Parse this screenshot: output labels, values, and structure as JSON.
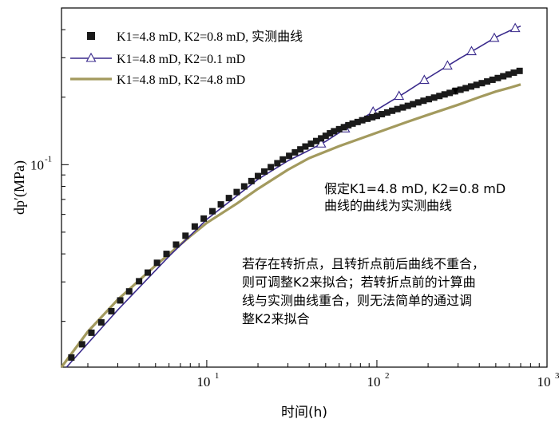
{
  "chart_data": {
    "type": "line",
    "xscale": "log",
    "yscale": "log",
    "xlim": [
      1.4,
      1000
    ],
    "ylim": [
      0.0125,
      0.5
    ],
    "xlabel": "时间(h)",
    "ylabel": "dp′(MPa)",
    "xticks": [
      {
        "value": 10,
        "base": "10",
        "exp": "1"
      },
      {
        "value": 100,
        "base": "10",
        "exp": "2"
      },
      {
        "value": 1000,
        "base": "10",
        "exp": "3"
      }
    ],
    "yticks": [
      {
        "value": 0.1,
        "base": "10",
        "exp": "-1"
      }
    ],
    "legend": {
      "placement": "top-left",
      "entries": [
        {
          "series": 0,
          "label": "K1=4.8 mD, K2=0.8 mD, 实测曲线"
        },
        {
          "series": 1,
          "label": "K1=4.8 mD, K2=0.1 mD"
        },
        {
          "series": 2,
          "label": "K1=4.8 mD, K2=4.8 mD"
        }
      ]
    },
    "series": [
      {
        "name": "K1=4.8 mD, K2=0.8 mD, 实测曲线",
        "style": "square-markers",
        "color": "#1a1a1a",
        "points": [
          [
            1.6,
            0.0138
          ],
          [
            1.85,
            0.0158
          ],
          [
            2.1,
            0.0178
          ],
          [
            2.4,
            0.0198
          ],
          [
            2.75,
            0.0222
          ],
          [
            3.1,
            0.0248
          ],
          [
            3.5,
            0.0272
          ],
          [
            4.0,
            0.0302
          ],
          [
            4.5,
            0.033
          ],
          [
            5.1,
            0.0365
          ],
          [
            5.8,
            0.04
          ],
          [
            6.6,
            0.044
          ],
          [
            7.5,
            0.0482
          ],
          [
            8.5,
            0.053
          ],
          [
            9.6,
            0.0575
          ],
          [
            10.8,
            0.062
          ],
          [
            12.1,
            0.0665
          ],
          [
            13.5,
            0.071
          ],
          [
            15.0,
            0.0755
          ],
          [
            16.6,
            0.08
          ],
          [
            18.3,
            0.0845
          ],
          [
            20.0,
            0.089
          ],
          [
            21.8,
            0.0932
          ],
          [
            23.8,
            0.0975
          ],
          [
            26,
            0.1015
          ],
          [
            28,
            0.1055
          ],
          [
            30.5,
            0.1095
          ],
          [
            33,
            0.1135
          ],
          [
            35.5,
            0.117
          ],
          [
            38,
            0.1205
          ],
          [
            41,
            0.124
          ],
          [
            44,
            0.1275
          ],
          [
            47,
            0.131
          ],
          [
            50,
            0.1345
          ],
          [
            53,
            0.138
          ],
          [
            56,
            0.141
          ],
          [
            60,
            0.144
          ],
          [
            64,
            0.147
          ],
          [
            68,
            0.15
          ],
          [
            72,
            0.1525
          ],
          [
            77,
            0.155
          ],
          [
            82,
            0.1578
          ],
          [
            88,
            0.1602
          ],
          [
            94,
            0.1628
          ],
          [
            100,
            0.165
          ],
          [
            107,
            0.168
          ],
          [
            115,
            0.171
          ],
          [
            123,
            0.174
          ],
          [
            132,
            0.177
          ],
          [
            142,
            0.18
          ],
          [
            152,
            0.183
          ],
          [
            163,
            0.1862
          ],
          [
            175,
            0.1895
          ],
          [
            188,
            0.1928
          ],
          [
            202,
            0.196
          ],
          [
            217,
            0.1992
          ],
          [
            233,
            0.2025
          ],
          [
            250,
            0.2058
          ],
          [
            268,
            0.209
          ],
          [
            288,
            0.2125
          ],
          [
            310,
            0.216
          ],
          [
            333,
            0.2195
          ],
          [
            358,
            0.2232
          ],
          [
            385,
            0.227
          ],
          [
            414,
            0.231
          ],
          [
            445,
            0.235
          ],
          [
            478,
            0.2392
          ],
          [
            514,
            0.2435
          ],
          [
            553,
            0.248
          ],
          [
            594,
            0.2525
          ],
          [
            638,
            0.2572
          ],
          [
            690,
            0.262
          ]
        ]
      },
      {
        "name": "K1=4.8 mD, K2=0.1 mD",
        "style": "line-triangle-markers",
        "color": "#3a2a8c",
        "points": [
          [
            1.5,
            0.0125
          ],
          [
            3,
            0.0225
          ],
          [
            6,
            0.039
          ],
          [
            10,
            0.057
          ],
          [
            20,
            0.086
          ],
          [
            30,
            0.104
          ],
          [
            40,
            0.116
          ],
          [
            50,
            0.127
          ],
          [
            70,
            0.15
          ],
          [
            100,
            0.176
          ],
          [
            150,
            0.212
          ],
          [
            200,
            0.244
          ],
          [
            300,
            0.295
          ],
          [
            400,
            0.335
          ],
          [
            500,
            0.37
          ],
          [
            600,
            0.395
          ],
          [
            700,
            0.415
          ]
        ],
        "markers_at": [
          47,
          65,
          95,
          135,
          190,
          260,
          360,
          490,
          650
        ]
      },
      {
        "name": "K1=4.8 mD, K2=4.8 mD",
        "style": "line",
        "color": "#a39a5e",
        "points": [
          [
            1.4,
            0.0125
          ],
          [
            2,
            0.018
          ],
          [
            3,
            0.025
          ],
          [
            5,
            0.0355
          ],
          [
            8,
            0.048
          ],
          [
            10,
            0.055
          ],
          [
            15,
            0.067
          ],
          [
            20,
            0.078
          ],
          [
            30,
            0.095
          ],
          [
            40,
            0.107
          ],
          [
            60,
            0.121
          ],
          [
            100,
            0.139
          ],
          [
            150,
            0.155
          ],
          [
            200,
            0.167
          ],
          [
            300,
            0.185
          ],
          [
            400,
            0.2
          ],
          [
            500,
            0.212
          ],
          [
            600,
            0.22
          ],
          [
            700,
            0.228
          ]
        ]
      }
    ],
    "annotations": [
      {
        "id": "arrow-note",
        "lines": [
          "假定K1=4.8 mD, K2=0.8 mD",
          "曲线的曲线为实测曲线"
        ],
        "arrow_to": [
          290,
          0.205
        ]
      },
      {
        "id": "turning-note",
        "lines": [
          "若存在转折点，且转折点前后曲线不重合，",
          "则可调整K2来拟合；若转折点前的计算曲",
          "线与实测曲线重合，则无法简单的通过调",
          "整K2来拟合"
        ]
      }
    ]
  }
}
